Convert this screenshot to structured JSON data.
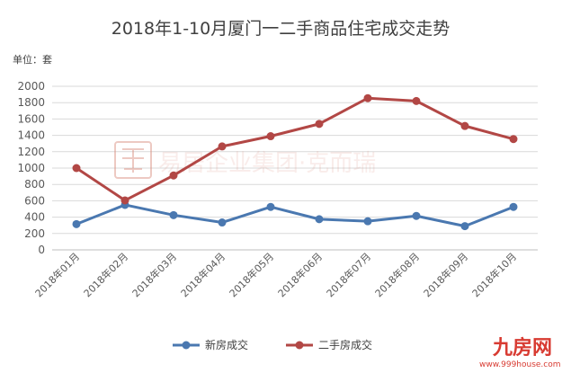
{
  "chart_data": {
    "type": "line",
    "title": "2018年1-10月厦门一二手商品住宅成交走势",
    "unit_label": "单位：套",
    "categories": [
      "2018年01月",
      "2018年02月",
      "2018年03月",
      "2018年04月",
      "2018年05月",
      "2018年06月",
      "2018年07月",
      "2018年08月",
      "2018年09月",
      "2018年10月"
    ],
    "ylim": [
      0,
      2000
    ],
    "yticks": [
      0,
      200,
      400,
      600,
      800,
      1000,
      1200,
      1400,
      1600,
      1800,
      2000
    ],
    "grid": true,
    "legend_position": "bottom",
    "series": [
      {
        "name": "新房成交",
        "color": "#4a78b0",
        "values": [
          315,
          550,
          425,
          335,
          525,
          375,
          350,
          415,
          290,
          525
        ]
      },
      {
        "name": "二手房成交",
        "color": "#b24745",
        "values": [
          1000,
          605,
          910,
          1265,
          1390,
          1540,
          1855,
          1820,
          1515,
          1355
        ]
      }
    ]
  },
  "watermark": {
    "text": "易居企业集团·克而瑞",
    "seal_icon": "yiju-seal-icon"
  },
  "logo": {
    "text": "九房网",
    "url": "www.999house.com"
  }
}
